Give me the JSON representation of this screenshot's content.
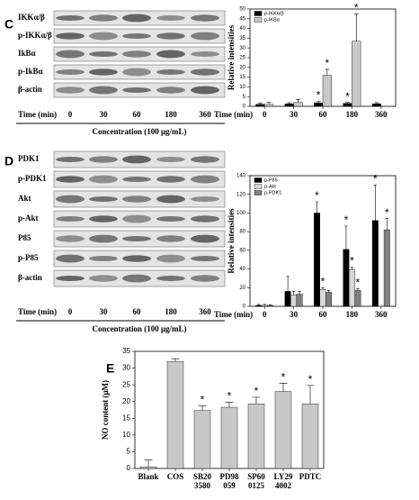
{
  "panels": {
    "c": "C",
    "d": "D",
    "e": "E"
  },
  "blots": [
    {
      "rows": [
        "IKKα/β",
        "p-IKKα/β",
        "IkBα",
        "p-IkBα",
        "β-actin"
      ],
      "time_label": "Time (min)",
      "times": [
        "0",
        "30",
        "60",
        "180",
        "360"
      ],
      "concentration": "Concentration (100 μg/mL)"
    },
    {
      "rows": [
        "PDK1",
        "p-PDK1",
        "Akt",
        "p-Akt",
        "P85",
        "p-P85",
        "β-actin"
      ],
      "time_label": "Time (min)",
      "times": [
        "0",
        "30",
        "60",
        "180",
        "360"
      ],
      "concentration": "Concentration (100 μg/mL)"
    }
  ],
  "chart_data": [
    {
      "type": "bar",
      "ylabel": "Relative intensities",
      "xlabel": "Time (min)",
      "categories": [
        "0",
        "30",
        "60",
        "180",
        "360"
      ],
      "series": [
        {
          "name": "p-IKKα/β",
          "color": "#000000",
          "values": [
            1,
            1.2,
            1.8,
            1.5,
            1.3
          ],
          "errors": [
            0.6,
            0.6,
            0.8,
            0.5,
            0.6
          ],
          "stars": [
            false,
            false,
            true,
            true,
            false
          ]
        },
        {
          "name": "p-IKBα",
          "color": "#c8c8c8",
          "values": [
            1,
            2,
            16,
            33.5,
            null
          ],
          "errors": [
            1,
            1.5,
            3,
            14,
            null
          ],
          "stars": [
            false,
            false,
            true,
            true,
            false
          ]
        }
      ],
      "star": "*",
      "ylim": [
        0,
        50
      ],
      "yticks": [
        0,
        5,
        10,
        15,
        20,
        25,
        30,
        35,
        40,
        45,
        50
      ]
    },
    {
      "type": "bar",
      "ylabel": "Relative intensities",
      "xlabel": "Time (min)",
      "categories": [
        "0",
        "30",
        "60",
        "180",
        "360"
      ],
      "series": [
        {
          "name": "p-P85",
          "color": "#000000",
          "values": [
            1,
            16,
            100,
            61,
            92
          ],
          "errors": [
            1,
            16,
            12,
            25,
            38
          ],
          "stars": [
            false,
            false,
            true,
            true,
            true
          ]
        },
        {
          "name": "p-Akt",
          "color": "#d8d8d8",
          "values": [
            1,
            12,
            18,
            39,
            null
          ],
          "errors": [
            1,
            4,
            2,
            3,
            null
          ],
          "stars": [
            false,
            false,
            true,
            true,
            false
          ]
        },
        {
          "name": "p-PDK1",
          "color": "#808080",
          "values": [
            1,
            13,
            15,
            17,
            82
          ],
          "errors": [
            0.5,
            3,
            2,
            2,
            12
          ],
          "stars": [
            false,
            false,
            false,
            true,
            true
          ]
        }
      ],
      "star": "*",
      "ylim": [
        0,
        140
      ],
      "yticks": [
        0,
        20,
        40,
        60,
        80,
        100,
        120,
        140
      ]
    },
    {
      "type": "bar",
      "ylabel": "NO content (μM)",
      "categories": [
        "Blank",
        "COS",
        "SB20\n3580",
        "PD98\n059",
        "SP60\n0125",
        "LY29\n4002",
        "PDTC"
      ],
      "series": [
        {
          "color": "#c8c8c8",
          "values": [
            0.5,
            32,
            17.3,
            18.3,
            19.3,
            23,
            19.3
          ],
          "errors": [
            2,
            0.8,
            1.5,
            1.5,
            2,
            2.5,
            5.5
          ],
          "stars": [
            false,
            false,
            true,
            true,
            true,
            true,
            true
          ]
        }
      ],
      "star": "*",
      "ylim": [
        0,
        35
      ],
      "yticks": [
        0,
        5,
        10,
        15,
        20,
        25,
        30,
        35
      ]
    }
  ]
}
